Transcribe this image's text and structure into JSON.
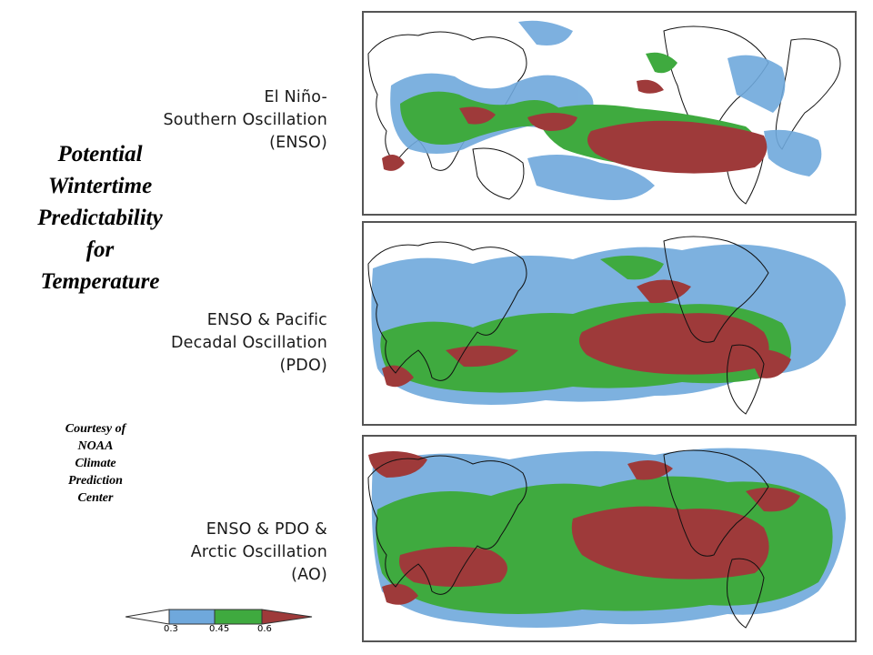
{
  "title": {
    "lines": [
      "Potential",
      "Wintertime",
      "Predictability",
      "for",
      "Temperature"
    ]
  },
  "credit": {
    "lines": [
      "Courtesy of",
      "NOAA",
      "Climate",
      "Prediction",
      "Center"
    ]
  },
  "panels": [
    {
      "label_lines": [
        "El Niño-",
        "Southern Oscillation",
        "(ENSO)"
      ]
    },
    {
      "label_lines": [
        "ENSO & Pacific",
        "Decadal Oscillation",
        "(PDO)"
      ]
    },
    {
      "label_lines": [
        "ENSO & PDO &",
        "Arctic Oscillation",
        "(AO)"
      ]
    }
  ],
  "legend": {
    "ticks": [
      "0.3",
      "0.45",
      "0.6"
    ],
    "colors": {
      "low": "#ffffff",
      "band1": "#6fa8dc",
      "band2": "#3faa3f",
      "band3": "#9e3a3a"
    }
  }
}
